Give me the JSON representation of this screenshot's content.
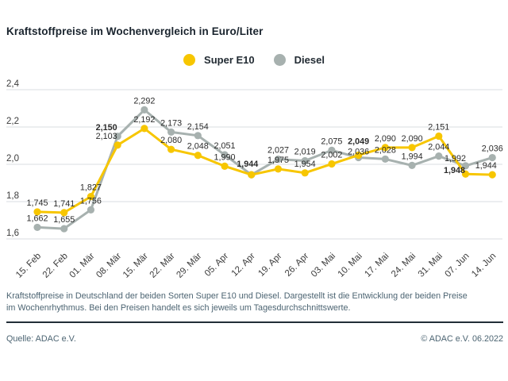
{
  "title": "Kraftstoffpreise im Wochenvergleich in Euro/Liter",
  "legend": [
    {
      "label": "Super E10",
      "color": "#F7C600"
    },
    {
      "label": "Diesel",
      "color": "#A7B1AF"
    }
  ],
  "chart_data": {
    "type": "line",
    "title": "Kraftstoffpreise im Wochenvergleich in Euro/Liter",
    "unit": "Euro/Liter",
    "grid": true,
    "legend_position": "top",
    "ylim": [
      1.6,
      2.4
    ],
    "yticks": [
      {
        "value": 2.4,
        "label": "2,4"
      },
      {
        "value": 2.2,
        "label": "2,2"
      },
      {
        "value": 2.0,
        "label": "2,0"
      },
      {
        "value": 1.8,
        "label": "1,8"
      },
      {
        "value": 1.6,
        "label": "1,6"
      }
    ],
    "categories": [
      "15. Feb",
      "22. Feb",
      "01. Mär",
      "08. Mär",
      "15. Mär",
      "22. Mär",
      "29. Mär",
      "05. Apr",
      "12. Apr",
      "19. Apr",
      "26. Apr",
      "03. Mai",
      "10. Mai",
      "17. Mai",
      "24. Mai",
      "31. Mai",
      "07. Jun",
      "14. Jun"
    ],
    "series": [
      {
        "name": "Super E10",
        "color": "#F7C600",
        "values": [
          1.745,
          1.741,
          1.827,
          2.103,
          2.192,
          2.08,
          2.048,
          1.99,
          1.944,
          1.975,
          1.954,
          2.002,
          2.049,
          2.09,
          2.09,
          2.151,
          1.948,
          1.944
        ],
        "labels": [
          "1,745",
          "1,741",
          "1,827",
          "2,103",
          "2,192",
          "2,080",
          "2,048",
          "1,990",
          "1,944",
          "1,975",
          "1,954",
          "2,002",
          "2,049",
          "2,090",
          "2,090",
          "2,151",
          "1,948",
          "1,944"
        ],
        "bold_label_indices": [
          8,
          12,
          16
        ]
      },
      {
        "name": "Diesel",
        "color": "#A7B1AF",
        "values": [
          1.662,
          1.655,
          1.756,
          2.15,
          2.292,
          2.173,
          2.154,
          2.051,
          1.944,
          2.027,
          2.019,
          2.075,
          2.036,
          2.028,
          1.994,
          2.044,
          1.992,
          2.036
        ],
        "labels": [
          "1,662",
          "1,655",
          "1,756",
          "2,150",
          "2,292",
          "2,173",
          "2,154",
          "2,051",
          null,
          "2,027",
          "2,019",
          "2,075",
          "2,036",
          "2,028",
          "1,994",
          "2,044",
          "1,992",
          "2,036"
        ],
        "bold_label_indices": [
          3
        ]
      }
    ]
  },
  "footnote": "Kraftstoffpreise in Deutschland der beiden Sorten Super E10 und Diesel. Dargestellt ist die Entwicklung der beiden Preise im Wochenrhythmus. Bei den Preisen handelt es sich jeweils um Tagesdurchschnittswerte.",
  "source": "Quelle: ADAC e.V.",
  "copyright": "© ADAC e.V. 06.2022"
}
